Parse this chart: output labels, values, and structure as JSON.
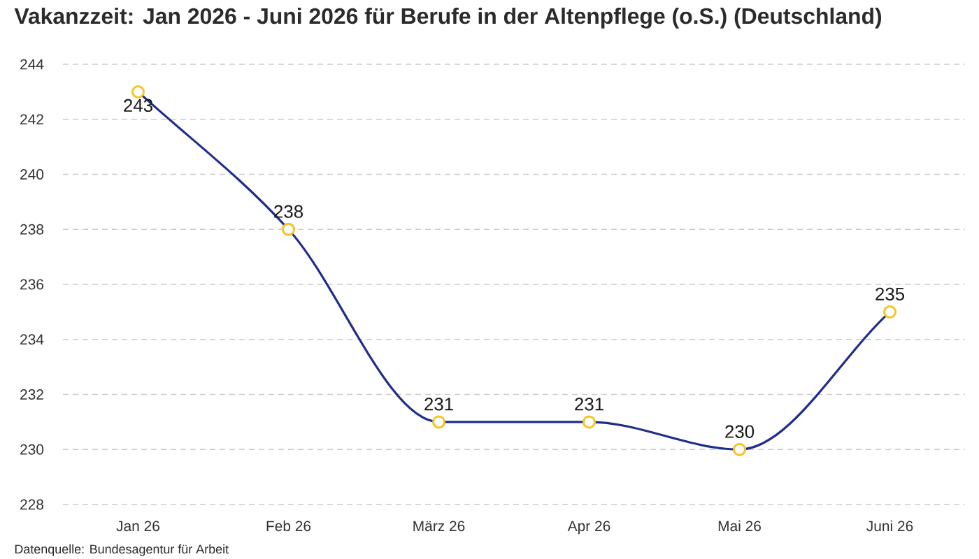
{
  "chart_data": {
    "type": "line",
    "title": "Vakanzzeit: Jan 2026 - Juni 2026 für Berufe in der Altenpflege (o.S.) (Deutschland)",
    "categories": [
      "Jan 26",
      "Feb 26",
      "März 26",
      "Apr 26",
      "Mai 26",
      "Juni 26"
    ],
    "series": [
      {
        "color": "#1f2e8c",
        "values": [
          243,
          238,
          231,
          231,
          230,
          235
        ]
      }
    ],
    "ylim": [
      228,
      244
    ],
    "yticks": [
      228,
      230,
      232,
      234,
      236,
      238,
      240,
      242,
      244
    ],
    "grid": "y",
    "marker": "circle",
    "line_style": "solid",
    "data_labels": true,
    "annotations": [
      "Datenquelle: Bundesagentur für Arbeit"
    ]
  }
}
